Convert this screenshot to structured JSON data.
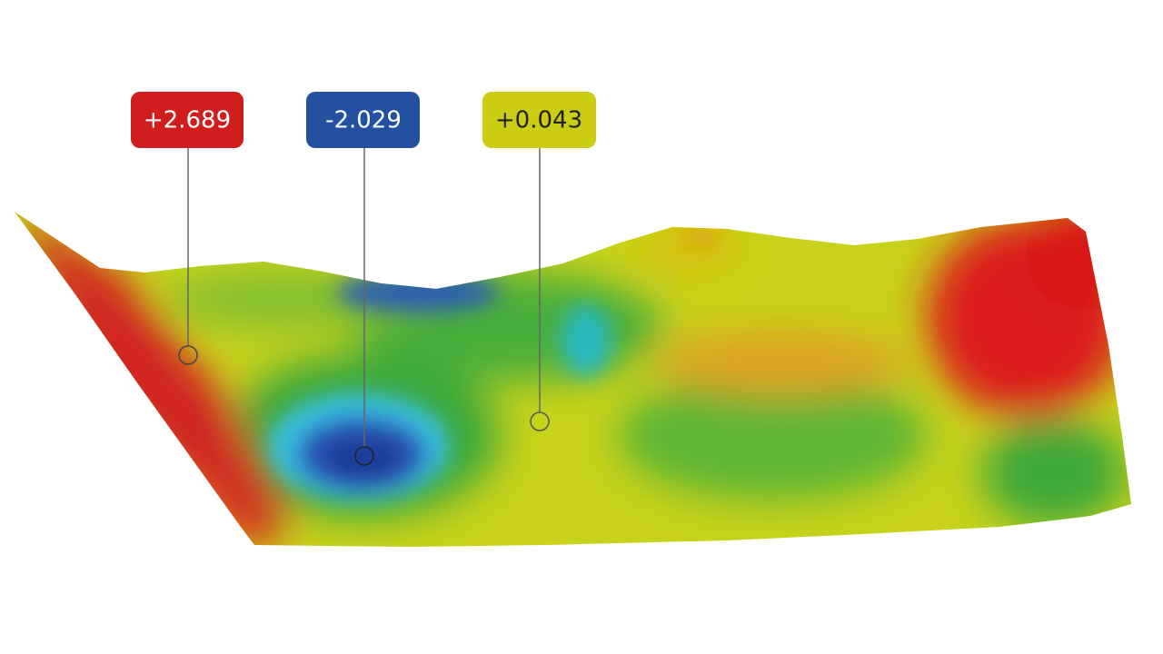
{
  "callouts": [
    {
      "label": "+2.689"
    },
    {
      "label": "-2.029"
    },
    {
      "label": "+0.043"
    }
  ]
}
